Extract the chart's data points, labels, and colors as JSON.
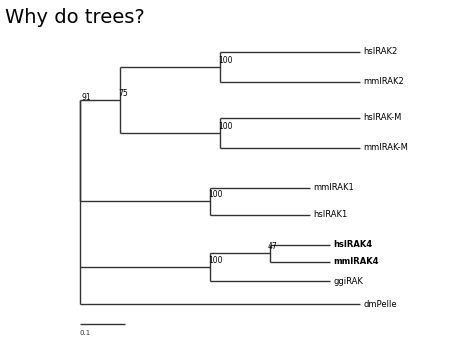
{
  "title": "Why do trees?",
  "title_fontsize": 14,
  "background_color": "#ffffff",
  "line_color": "#333333",
  "line_width": 1.0,
  "label_fontsize": 6.0,
  "bootstrap_fontsize": 5.5,
  "scale_bar_label": "0.1",
  "bold_taxa": [
    "hsIRAK4",
    "mmIRAK4"
  ]
}
